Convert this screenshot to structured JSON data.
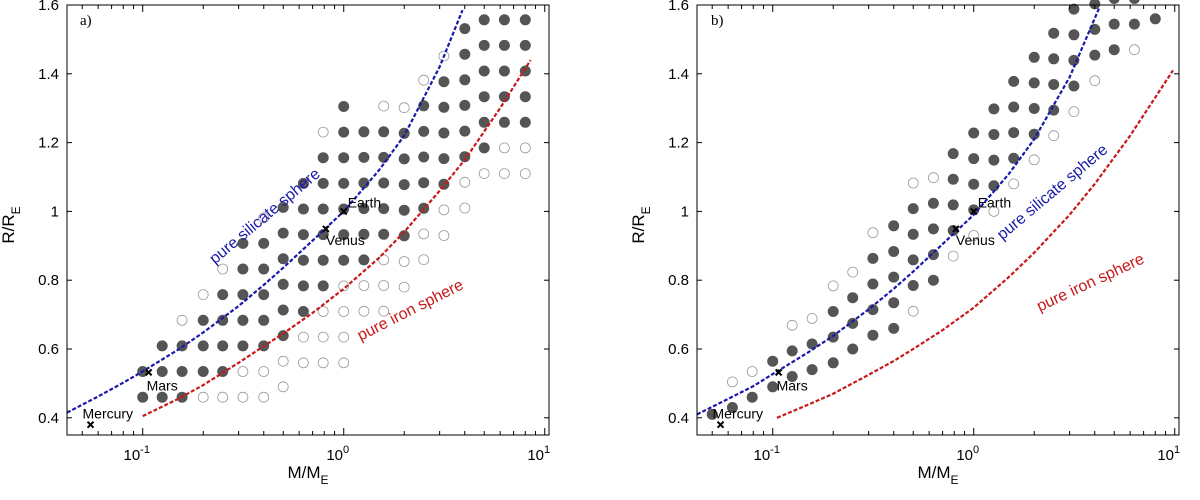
{
  "figure": {
    "x_axis_label": "M/M",
    "x_axis_label_sub": "E",
    "y_axis_label": "R/R",
    "y_axis_label_sub": "E",
    "x_ticks": [
      {
        "base": "10",
        "exp": "-1"
      },
      {
        "base": "10",
        "exp": "0"
      },
      {
        "base": "10",
        "exp": "1"
      }
    ],
    "y_ticks": [
      "0.4",
      "0.6",
      "0.8",
      "1",
      "1.2",
      "1.4",
      "1.6"
    ]
  },
  "chart_data": [
    {
      "type": "scatter",
      "panel_label": "a)",
      "x_scale": "log",
      "xlim": [
        0.042,
        10.5
      ],
      "ylim": [
        0.35,
        1.6
      ],
      "grid": false,
      "curves": [
        {
          "label": "pure silicate sphere",
          "color": "#1a1aa8",
          "style": "dashed",
          "x": [
            0.042,
            0.06,
            0.08,
            0.1,
            0.15,
            0.2,
            0.3,
            0.4,
            0.5,
            0.7,
            1.0,
            1.5,
            2.0,
            3.0,
            3.9
          ],
          "y": [
            0.415,
            0.462,
            0.502,
            0.535,
            0.598,
            0.648,
            0.725,
            0.786,
            0.836,
            0.915,
            1.0,
            1.12,
            1.22,
            1.42,
            1.585
          ]
        },
        {
          "label": "pure iron sphere",
          "color": "#c81a1a",
          "style": "dashed",
          "x": [
            0.1,
            0.15,
            0.2,
            0.3,
            0.4,
            0.5,
            0.7,
            1.0,
            1.5,
            2.0,
            3.0,
            4.0,
            6.0,
            8.5
          ],
          "y": [
            0.405,
            0.455,
            0.495,
            0.56,
            0.608,
            0.645,
            0.705,
            0.775,
            0.865,
            0.94,
            1.06,
            1.15,
            1.3,
            1.44
          ]
        }
      ],
      "planets": [
        {
          "name": "Mercury",
          "x": 0.055,
          "y": 0.38
        },
        {
          "name": "Mars",
          "x": 0.107,
          "y": 0.532
        },
        {
          "name": "Venus",
          "x": 0.815,
          "y": 0.949
        },
        {
          "name": "Earth",
          "x": 1.0,
          "y": 1.0
        }
      ],
      "grid_points": {
        "columns": [
          {
            "x": 0.1,
            "y_start": 0.46,
            "n": 2,
            "filled": [
              1,
              1
            ]
          },
          {
            "x": 0.125,
            "y_start": 0.46,
            "n": 3,
            "filled": [
              1,
              1,
              1
            ]
          },
          {
            "x": 0.157,
            "y_start": 0.46,
            "n": 4,
            "filled": [
              1,
              1,
              1,
              0
            ]
          },
          {
            "x": 0.2,
            "y_start": 0.46,
            "n": 5,
            "filled": [
              0,
              1,
              1,
              1,
              0
            ]
          },
          {
            "x": 0.25,
            "y_start": 0.46,
            "n": 6,
            "filled": [
              0,
              1,
              1,
              1,
              1,
              0
            ]
          },
          {
            "x": 0.315,
            "y_start": 0.46,
            "n": 7,
            "filled": [
              0,
              0,
              1,
              1,
              1,
              1,
              1
            ]
          },
          {
            "x": 0.4,
            "y_start": 0.46,
            "n": 8,
            "filled": [
              0,
              0,
              1,
              1,
              1,
              1,
              1,
              0
            ]
          },
          {
            "x": 0.5,
            "y_start": 0.49,
            "n": 8,
            "filled": [
              0,
              0,
              1,
              1,
              1,
              1,
              1,
              1
            ]
          },
          {
            "x": 0.63,
            "y_start": 0.56,
            "n": 8,
            "filled": [
              0,
              0,
              1,
              1,
              1,
              1,
              1,
              1
            ]
          },
          {
            "x": 0.79,
            "y_start": 0.56,
            "n": 10,
            "filled": [
              0,
              0,
              0,
              1,
              1,
              1,
              1,
              1,
              1,
              0
            ]
          },
          {
            "x": 1.0,
            "y_start": 0.56,
            "n": 11,
            "filled": [
              0,
              0,
              0,
              0,
              1,
              1,
              1,
              1,
              1,
              1,
              1
            ]
          },
          {
            "x": 1.26,
            "y_start": 0.71,
            "n": 8,
            "filled": [
              0,
              0,
              1,
              1,
              1,
              1,
              1,
              1
            ]
          },
          {
            "x": 1.58,
            "y_start": 0.71,
            "n": 9,
            "filled": [
              0,
              0,
              0,
              1,
              1,
              1,
              1,
              1,
              0
            ]
          },
          {
            "x": 2.0,
            "y_start": 0.78,
            "n": 8,
            "filled": [
              0,
              0,
              1,
              1,
              1,
              1,
              1,
              0
            ]
          },
          {
            "x": 2.5,
            "y_start": 0.86,
            "n": 8,
            "filled": [
              0,
              0,
              1,
              1,
              1,
              1,
              1,
              0
            ]
          },
          {
            "x": 3.15,
            "y_start": 0.93,
            "n": 8,
            "filled": [
              0,
              0,
              1,
              1,
              1,
              1,
              1,
              0
            ]
          },
          {
            "x": 4.0,
            "y_start": 1.01,
            "n": 8,
            "filled": [
              0,
              0,
              1,
              1,
              1,
              1,
              1,
              1
            ]
          },
          {
            "x": 5.0,
            "y_start": 1.11,
            "n": 7,
            "filled": [
              0,
              1,
              1,
              1,
              1,
              1,
              1
            ]
          },
          {
            "x": 6.3,
            "y_start": 1.11,
            "n": 7,
            "filled": [
              0,
              0,
              1,
              1,
              1,
              1,
              1
            ]
          },
          {
            "x": 8.0,
            "y_start": 1.11,
            "n": 7,
            "filled": [
              0,
              0,
              1,
              1,
              1,
              1,
              1
            ]
          }
        ]
      }
    },
    {
      "type": "scatter",
      "panel_label": "b)",
      "x_scale": "log",
      "xlim": [
        0.042,
        10.5
      ],
      "ylim": [
        0.35,
        1.6
      ],
      "grid": false,
      "curves": [
        {
          "label": "pure silicate sphere",
          "color": "#1a1aa8",
          "style": "dashed",
          "x": [
            0.042,
            0.06,
            0.08,
            0.1,
            0.15,
            0.2,
            0.3,
            0.4,
            0.5,
            0.7,
            1.0,
            1.5,
            2.0,
            3.0,
            4.2
          ],
          "y": [
            0.41,
            0.455,
            0.492,
            0.527,
            0.59,
            0.638,
            0.715,
            0.775,
            0.825,
            0.905,
            0.99,
            1.11,
            1.21,
            1.39,
            1.59
          ]
        },
        {
          "label": "pure iron sphere",
          "color": "#c81a1a",
          "style": "dashed",
          "x": [
            0.105,
            0.15,
            0.2,
            0.3,
            0.4,
            0.5,
            0.7,
            1.0,
            1.5,
            2.0,
            3.0,
            4.0,
            6.0,
            9.8
          ],
          "y": [
            0.4,
            0.438,
            0.47,
            0.525,
            0.565,
            0.6,
            0.655,
            0.72,
            0.81,
            0.88,
            0.99,
            1.08,
            1.22,
            1.41
          ]
        }
      ],
      "planets": [
        {
          "name": "Mercury",
          "x": 0.055,
          "y": 0.38
        },
        {
          "name": "Mars",
          "x": 0.107,
          "y": 0.532
        },
        {
          "name": "Venus",
          "x": 0.815,
          "y": 0.949
        },
        {
          "name": "Earth",
          "x": 1.0,
          "y": 1.0
        }
      ],
      "grid_points": {
        "columns": [
          {
            "x": 0.05,
            "y_start": 0.41,
            "n": 1,
            "filled": [
              1
            ]
          },
          {
            "x": 0.063,
            "y_start": 0.43,
            "n": 2,
            "filled": [
              1,
              0
            ]
          },
          {
            "x": 0.079,
            "y_start": 0.46,
            "n": 2,
            "filled": [
              1,
              0
            ]
          },
          {
            "x": 0.1,
            "y_start": 0.49,
            "n": 2,
            "filled": [
              1,
              1
            ]
          },
          {
            "x": 0.125,
            "y_start": 0.52,
            "n": 3,
            "filled": [
              1,
              1,
              0
            ]
          },
          {
            "x": 0.157,
            "y_start": 0.54,
            "n": 3,
            "filled": [
              1,
              1,
              0
            ]
          },
          {
            "x": 0.2,
            "y_start": 0.56,
            "n": 4,
            "filled": [
              1,
              1,
              1,
              0
            ]
          },
          {
            "x": 0.25,
            "y_start": 0.6,
            "n": 4,
            "filled": [
              1,
              1,
              1,
              0
            ]
          },
          {
            "x": 0.315,
            "y_start": 0.64,
            "n": 5,
            "filled": [
              1,
              1,
              1,
              1,
              0
            ]
          },
          {
            "x": 0.4,
            "y_start": 0.66,
            "n": 5,
            "filled": [
              1,
              1,
              1,
              1,
              1
            ]
          },
          {
            "x": 0.5,
            "y_start": 0.71,
            "n": 6,
            "filled": [
              0,
              1,
              1,
              1,
              1,
              0
            ]
          },
          {
            "x": 0.63,
            "y_start": 0.8,
            "n": 5,
            "filled": [
              1,
              1,
              1,
              1,
              0
            ]
          },
          {
            "x": 0.79,
            "y_start": 0.87,
            "n": 5,
            "filled": [
              0,
              1,
              1,
              1,
              1
            ]
          },
          {
            "x": 1.0,
            "y_start": 0.93,
            "n": 5,
            "filled": [
              0,
              1,
              1,
              1,
              1
            ]
          },
          {
            "x": 1.26,
            "y_start": 1.0,
            "n": 5,
            "filled": [
              0,
              1,
              1,
              1,
              1
            ]
          },
          {
            "x": 1.58,
            "y_start": 1.08,
            "n": 5,
            "filled": [
              0,
              1,
              1,
              1,
              1
            ]
          },
          {
            "x": 2.0,
            "y_start": 1.15,
            "n": 5,
            "filled": [
              0,
              1,
              1,
              1,
              1
            ]
          },
          {
            "x": 2.5,
            "y_start": 1.22,
            "n": 5,
            "filled": [
              0,
              1,
              1,
              1,
              1
            ]
          },
          {
            "x": 3.15,
            "y_start": 1.29,
            "n": 5,
            "filled": [
              0,
              1,
              1,
              1,
              1
            ]
          },
          {
            "x": 4.0,
            "y_start": 1.38,
            "n": 5,
            "filled": [
              0,
              1,
              1,
              1,
              1
            ]
          },
          {
            "x": 5.0,
            "y_start": 1.47,
            "n": 3,
            "filled": [
              1,
              1,
              1
            ]
          },
          {
            "x": 6.3,
            "y_start": 1.47,
            "n": 3,
            "filled": [
              0,
              1,
              1
            ]
          },
          {
            "x": 8.0,
            "y_start": 1.56,
            "n": 1,
            "filled": [
              1
            ]
          }
        ]
      }
    }
  ]
}
